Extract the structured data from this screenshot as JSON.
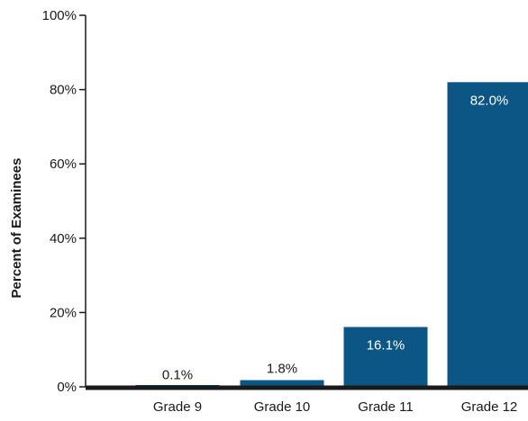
{
  "chart_data": {
    "type": "bar",
    "categories": [
      "Grade 9",
      "Grade 10",
      "Grade 11",
      "Grade 12"
    ],
    "values": [
      0.1,
      1.8,
      16.1,
      82.0
    ],
    "value_labels": [
      "0.1%",
      "1.8%",
      "16.1%",
      "82.0%"
    ],
    "title": "",
    "xlabel": "",
    "ylabel": "Percent of Examinees",
    "ylim": [
      0,
      100
    ],
    "yticks": [
      0,
      20,
      40,
      60,
      80,
      100
    ],
    "ytick_labels": [
      "0%",
      "20%",
      "40%",
      "60%",
      "80%",
      "100%"
    ],
    "grid": false,
    "bar_color": "#0b5685",
    "axis_color": "#1a1a1a"
  }
}
